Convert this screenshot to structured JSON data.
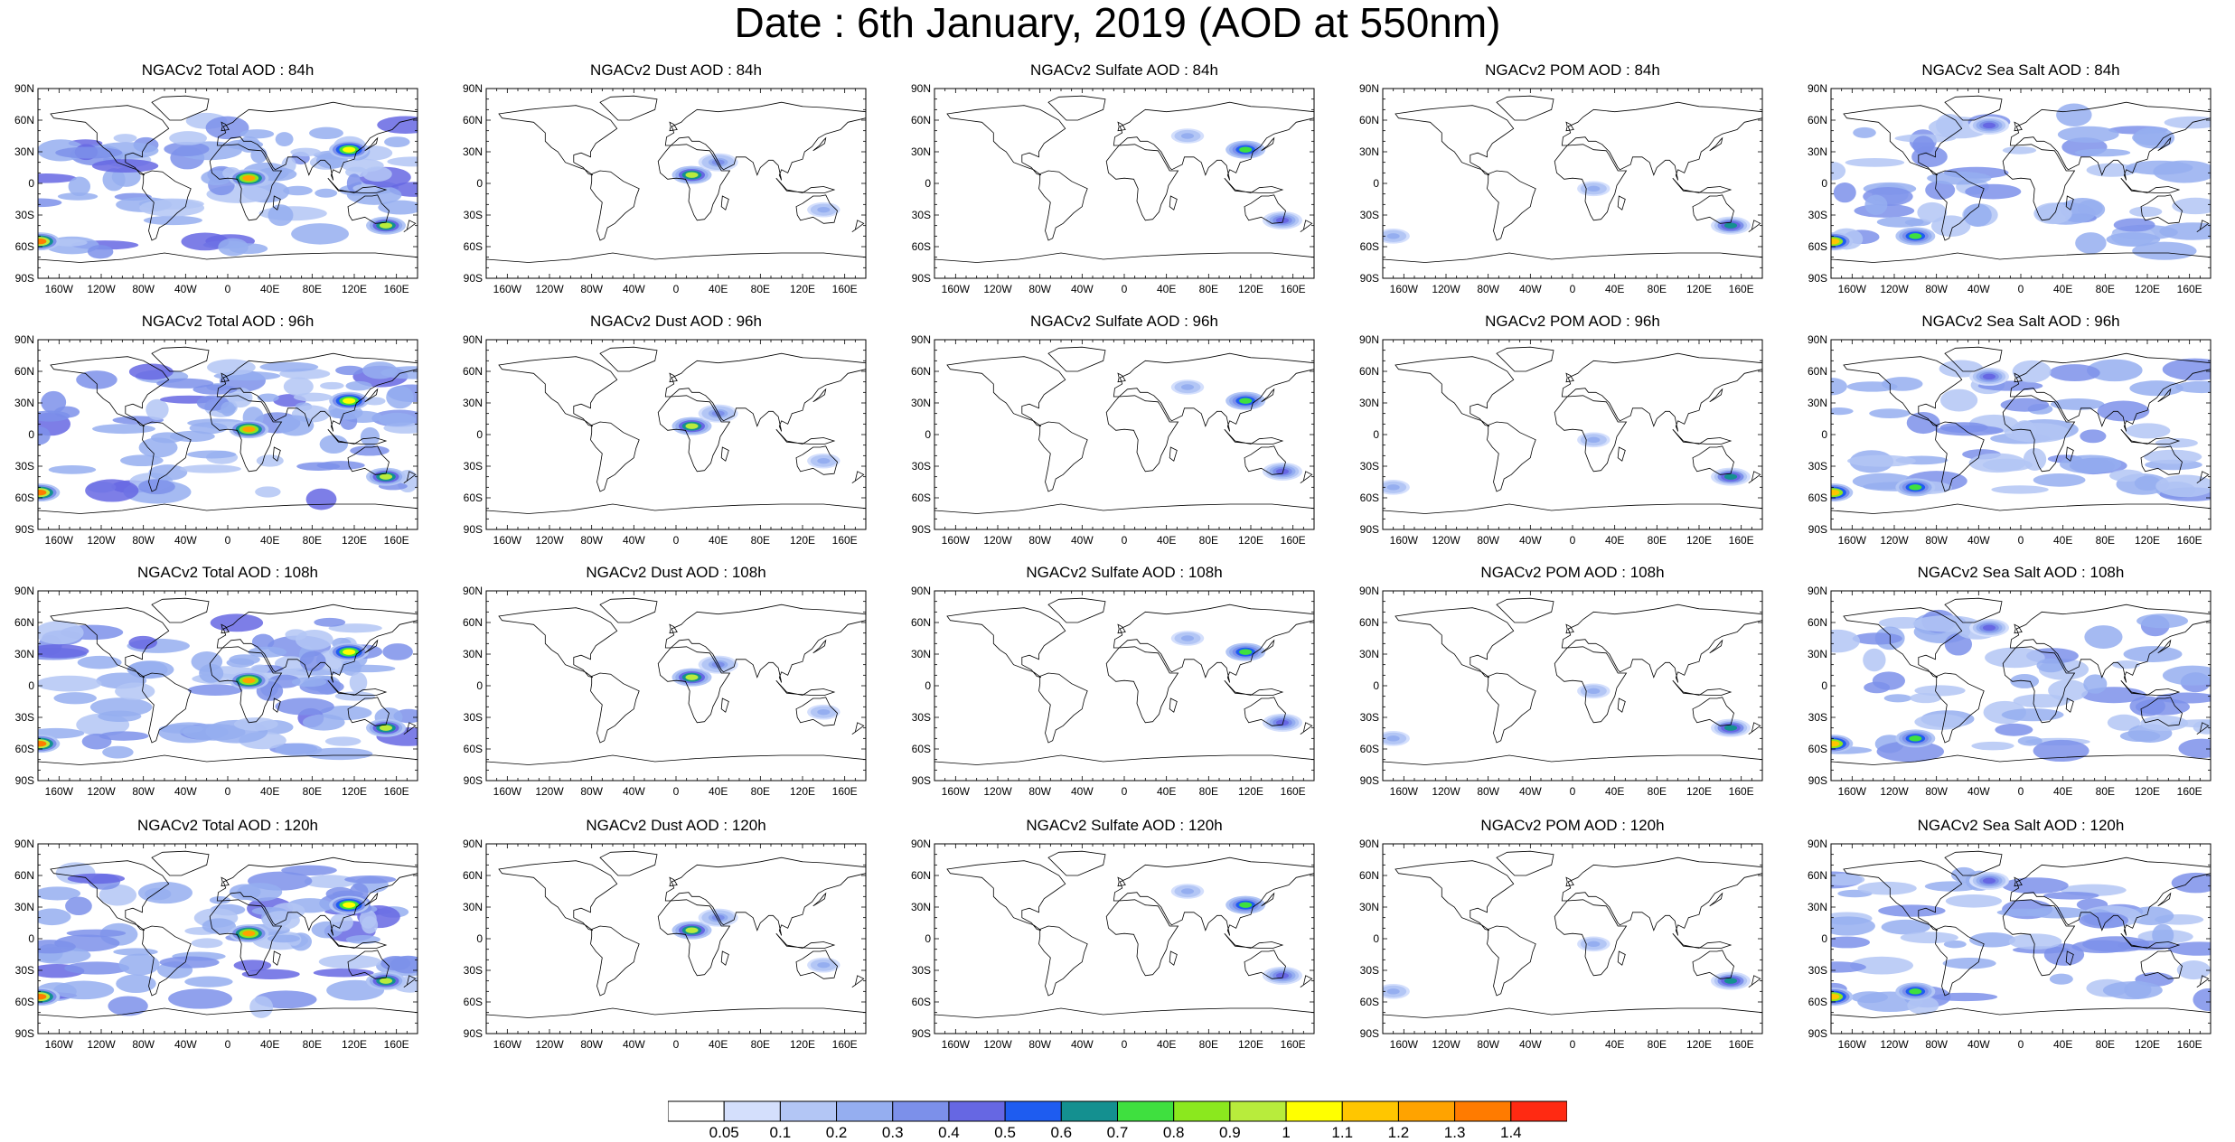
{
  "title": "Date : 6th January, 2019 (AOD at 550nm)",
  "panels": [
    {
      "title": "NGACv2 Total AOD : 84h",
      "species": "total",
      "hour": 84
    },
    {
      "title": "NGACv2 Dust AOD : 84h",
      "species": "dust",
      "hour": 84
    },
    {
      "title": "NGACv2 Sulfate AOD : 84h",
      "species": "sulfate",
      "hour": 84
    },
    {
      "title": "NGACv2 POM AOD : 84h",
      "species": "pom",
      "hour": 84
    },
    {
      "title": "NGACv2 Sea Salt AOD : 84h",
      "species": "seasalt",
      "hour": 84
    },
    {
      "title": "NGACv2 Total AOD : 96h",
      "species": "total",
      "hour": 96
    },
    {
      "title": "NGACv2 Dust AOD : 96h",
      "species": "dust",
      "hour": 96
    },
    {
      "title": "NGACv2 Sulfate AOD : 96h",
      "species": "sulfate",
      "hour": 96
    },
    {
      "title": "NGACv2 POM AOD : 96h",
      "species": "pom",
      "hour": 96
    },
    {
      "title": "NGACv2 Sea Salt AOD : 96h",
      "species": "seasalt",
      "hour": 96
    },
    {
      "title": "NGACv2 Total AOD : 108h",
      "species": "total",
      "hour": 108
    },
    {
      "title": "NGACv2 Dust AOD : 108h",
      "species": "dust",
      "hour": 108
    },
    {
      "title": "NGACv2 Sulfate AOD : 108h",
      "species": "sulfate",
      "hour": 108
    },
    {
      "title": "NGACv2 POM AOD : 108h",
      "species": "pom",
      "hour": 108
    },
    {
      "title": "NGACv2 Sea Salt AOD : 108h",
      "species": "seasalt",
      "hour": 108
    },
    {
      "title": "NGACv2 Total AOD : 120h",
      "species": "total",
      "hour": 120
    },
    {
      "title": "NGACv2 Dust AOD : 120h",
      "species": "dust",
      "hour": 120
    },
    {
      "title": "NGACv2 Sulfate AOD : 120h",
      "species": "sulfate",
      "hour": 120
    },
    {
      "title": "NGACv2 POM AOD : 120h",
      "species": "pom",
      "hour": 120
    },
    {
      "title": "NGACv2 Sea Salt  AOD : 120h",
      "species": "seasalt",
      "hour": 120
    }
  ],
  "lat_ticks": [
    "90N",
    "60N",
    "30N",
    "0",
    "30S",
    "60S",
    "90S"
  ],
  "lon_ticks": [
    "160W",
    "120W",
    "80W",
    "40W",
    "0",
    "40E",
    "80E",
    "120E",
    "160E"
  ],
  "lon_tick_values": [
    -160,
    -120,
    -80,
    -40,
    0,
    40,
    80,
    120,
    160
  ],
  "lat_tick_values": [
    90,
    60,
    30,
    0,
    -30,
    -60,
    -90
  ],
  "colorbar": {
    "labels": [
      "0.05",
      "0.1",
      "0.2",
      "0.3",
      "0.4",
      "0.5",
      "0.6",
      "0.7",
      "0.8",
      "0.9",
      "1",
      "1.1",
      "1.2",
      "1.3",
      "1.4"
    ],
    "colors": [
      "#ffffff",
      "#d4dffc",
      "#b3c6f5",
      "#95aef0",
      "#7c90ea",
      "#6667e3",
      "#1e5cf0",
      "#149090",
      "#3fe03f",
      "#8be81e",
      "#b8ec3c",
      "#ffff00",
      "#ffc600",
      "#ffa300",
      "#ff7b00",
      "#ff2a12"
    ]
  },
  "species_intensity": {
    "total": {
      "ocean": 0.35,
      "land": 0.25,
      "hotspots": [
        [
          20,
          5,
          1.2
        ],
        [
          115,
          32,
          1.0
        ],
        [
          -178,
          -55,
          1.3
        ],
        [
          150,
          -40,
          0.9
        ]
      ]
    },
    "dust": {
      "ocean": 0.0,
      "land": 0.0,
      "hotspots": [
        [
          15,
          8,
          0.9
        ],
        [
          40,
          20,
          0.35
        ],
        [
          140,
          -25,
          0.25
        ]
      ]
    },
    "sulfate": {
      "ocean": 0.0,
      "land": 0.0,
      "hotspots": [
        [
          115,
          32,
          0.75
        ],
        [
          60,
          45,
          0.2
        ],
        [
          150,
          -35,
          0.4
        ]
      ]
    },
    "pom": {
      "ocean": 0.0,
      "land": 0.0,
      "hotspots": [
        [
          20,
          -5,
          0.25
        ],
        [
          150,
          -40,
          0.6
        ],
        [
          -170,
          -50,
          0.2
        ]
      ]
    },
    "seasalt": {
      "ocean": 0.3,
      "land": 0.0,
      "hotspots": [
        [
          -178,
          -55,
          1.1
        ],
        [
          -100,
          -50,
          0.7
        ],
        [
          -30,
          55,
          0.45
        ]
      ]
    }
  }
}
